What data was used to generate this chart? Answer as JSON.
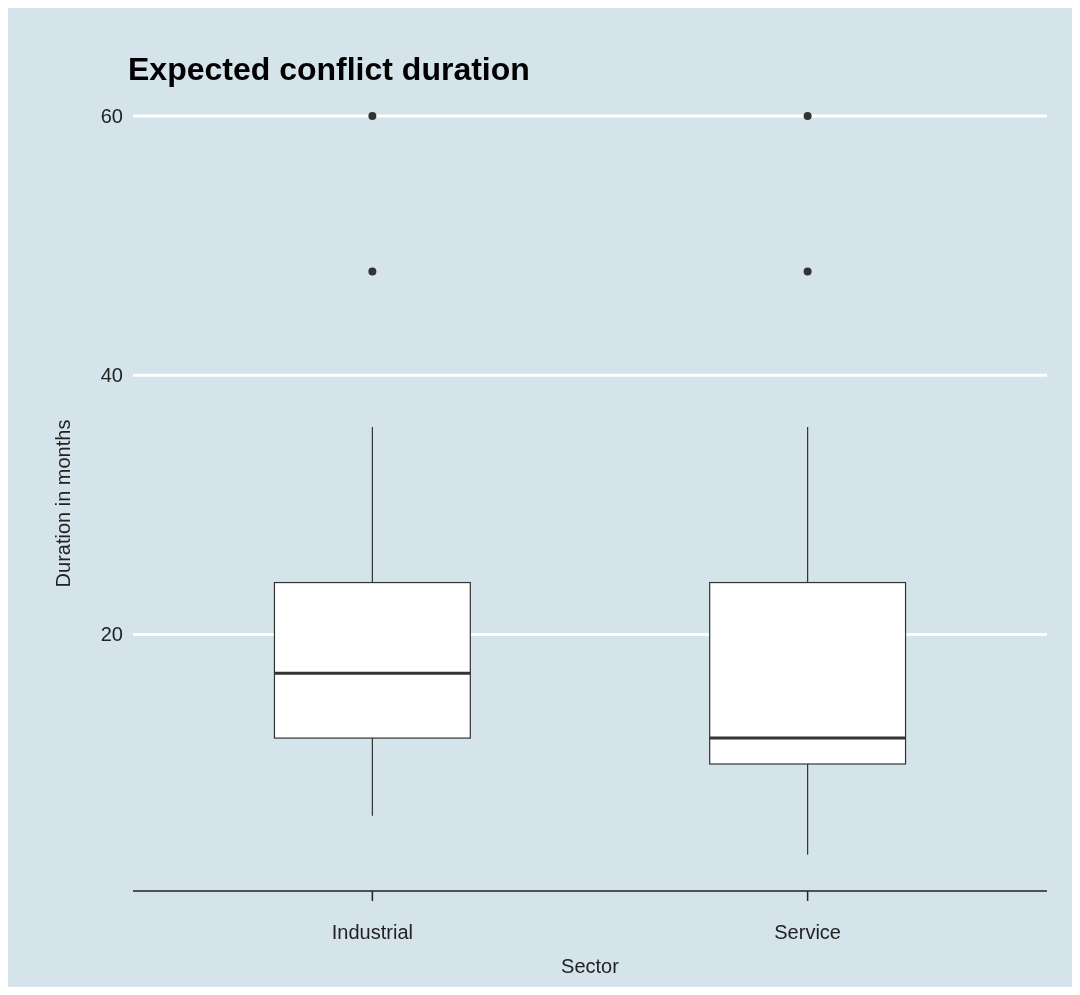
{
  "chart_data": {
    "type": "box",
    "title": "Expected conflict duration",
    "xlabel": "Sector",
    "ylabel": "Duration in months",
    "categories": [
      "Industrial",
      "Service"
    ],
    "boxes": [
      {
        "low": 6,
        "q1": 12,
        "median": 17,
        "q3": 24,
        "high": 36,
        "outliers": [
          48,
          60
        ]
      },
      {
        "low": 3,
        "q1": 10,
        "median": 12,
        "q3": 24,
        "high": 36,
        "outliers": [
          48,
          60
        ]
      }
    ],
    "color": "#ffffff",
    "ylim": [
      0.2,
      60
    ],
    "yticks": [
      20,
      40,
      60
    ],
    "grid": "y"
  }
}
